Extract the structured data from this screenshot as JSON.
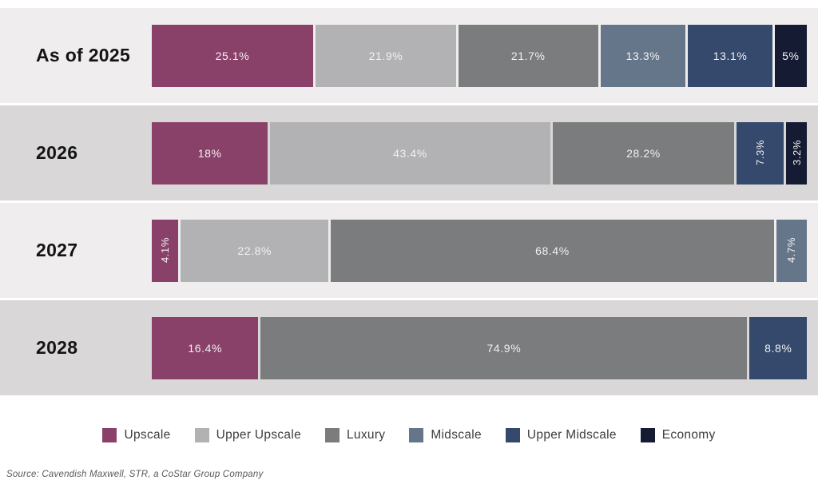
{
  "colors": {
    "series": {
      "Upscale": "#8a4169",
      "Upper Upscale": "#b2b2b4",
      "Luxury": "#7a7c7d",
      "Midscale": "#66768a",
      "Upper Midscale": "#34496b",
      "Economy": "#151b32"
    },
    "row_bg_light": "#efedee",
    "row_bg_dark": "#d9d7d7",
    "segment_label_text": "#f2f0f2",
    "year_label_text": "#141414",
    "source_text": "#595959"
  },
  "chart_data": {
    "type": "bar",
    "orientation": "horizontal-stacked",
    "unit": "%",
    "categories": [
      "As of 2025",
      "2026",
      "2027",
      "2028"
    ],
    "series": [
      {
        "name": "Upscale",
        "values": [
          25.1,
          18.0,
          4.1,
          16.4
        ]
      },
      {
        "name": "Upper Upscale",
        "values": [
          21.9,
          43.4,
          22.8,
          0.0
        ]
      },
      {
        "name": "Luxury",
        "values": [
          21.7,
          28.2,
          68.4,
          74.9
        ]
      },
      {
        "name": "Midscale",
        "values": [
          13.3,
          0.0,
          4.7,
          0.0
        ]
      },
      {
        "name": "Upper Midscale",
        "values": [
          13.1,
          7.3,
          0.0,
          8.8
        ]
      },
      {
        "name": "Economy",
        "values": [
          5.0,
          3.2,
          0.0,
          0.0
        ]
      }
    ],
    "xlim": [
      0,
      100
    ],
    "grid": false,
    "legend_position": "bottom"
  },
  "rows": [
    {
      "label": "As of 2025",
      "segments": [
        {
          "series": "Upscale",
          "value": 25.1,
          "label": "25.1%",
          "vertical": false
        },
        {
          "series": "Upper Upscale",
          "value": 21.9,
          "label": "21.9%",
          "vertical": false
        },
        {
          "series": "Luxury",
          "value": 21.7,
          "label": "21.7%",
          "vertical": false
        },
        {
          "series": "Midscale",
          "value": 13.3,
          "label": "13.3%",
          "vertical": false
        },
        {
          "series": "Upper Midscale",
          "value": 13.1,
          "label": "13.1%",
          "vertical": false
        },
        {
          "series": "Economy",
          "value": 5.0,
          "label": "5%",
          "vertical": false
        }
      ]
    },
    {
      "label": "2026",
      "segments": [
        {
          "series": "Upscale",
          "value": 18.0,
          "label": "18%",
          "vertical": false
        },
        {
          "series": "Upper Upscale",
          "value": 43.4,
          "label": "43.4%",
          "vertical": false
        },
        {
          "series": "Luxury",
          "value": 28.2,
          "label": "28.2%",
          "vertical": false
        },
        {
          "series": "Upper Midscale",
          "value": 7.3,
          "label": "7.3%",
          "vertical": true
        },
        {
          "series": "Economy",
          "value": 3.2,
          "label": "3.2%",
          "vertical": true
        }
      ]
    },
    {
      "label": "2027",
      "segments": [
        {
          "series": "Upscale",
          "value": 4.1,
          "label": "4.1%",
          "vertical": true
        },
        {
          "series": "Upper Upscale",
          "value": 22.8,
          "label": "22.8%",
          "vertical": false
        },
        {
          "series": "Luxury",
          "value": 68.4,
          "label": "68.4%",
          "vertical": false
        },
        {
          "series": "Midscale",
          "value": 4.7,
          "label": "4.7%",
          "vertical": true
        }
      ]
    },
    {
      "label": "2028",
      "segments": [
        {
          "series": "Upscale",
          "value": 16.4,
          "label": "16.4%",
          "vertical": false
        },
        {
          "series": "Luxury",
          "value": 74.9,
          "label": "74.9%",
          "vertical": false
        },
        {
          "series": "Upper Midscale",
          "value": 8.8,
          "label": "8.8%",
          "vertical": false
        }
      ]
    }
  ],
  "legend": {
    "items": [
      {
        "series": "Upscale",
        "label": "Upscale"
      },
      {
        "series": "Upper Upscale",
        "label": "Upper Upscale"
      },
      {
        "series": "Luxury",
        "label": "Luxury"
      },
      {
        "series": "Midscale",
        "label": "Midscale"
      },
      {
        "series": "Upper Midscale",
        "label": "Upper Midscale"
      },
      {
        "series": "Economy",
        "label": "Economy"
      }
    ]
  },
  "source": {
    "text": "Source: Cavendish Maxwell, STR, a CoStar Group Company"
  }
}
